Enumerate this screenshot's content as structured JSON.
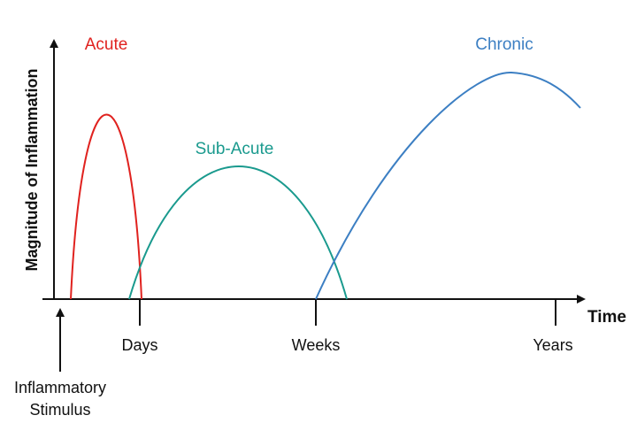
{
  "y_axis_label": "Magnitude of Inflammation",
  "x_axis_label": "Time",
  "ticks": [
    "Days",
    "Weeks",
    "Years"
  ],
  "stimulus_label": [
    "Inflammatory",
    "Stimulus"
  ],
  "curves": {
    "acute": {
      "label": "Acute",
      "color": "#e0221f"
    },
    "subacute": {
      "label": "Sub-Acute",
      "color": "#1a9a8e"
    },
    "chronic": {
      "label": "Chronic",
      "color": "#3c7fc3"
    }
  },
  "axis_color": "#111111"
}
